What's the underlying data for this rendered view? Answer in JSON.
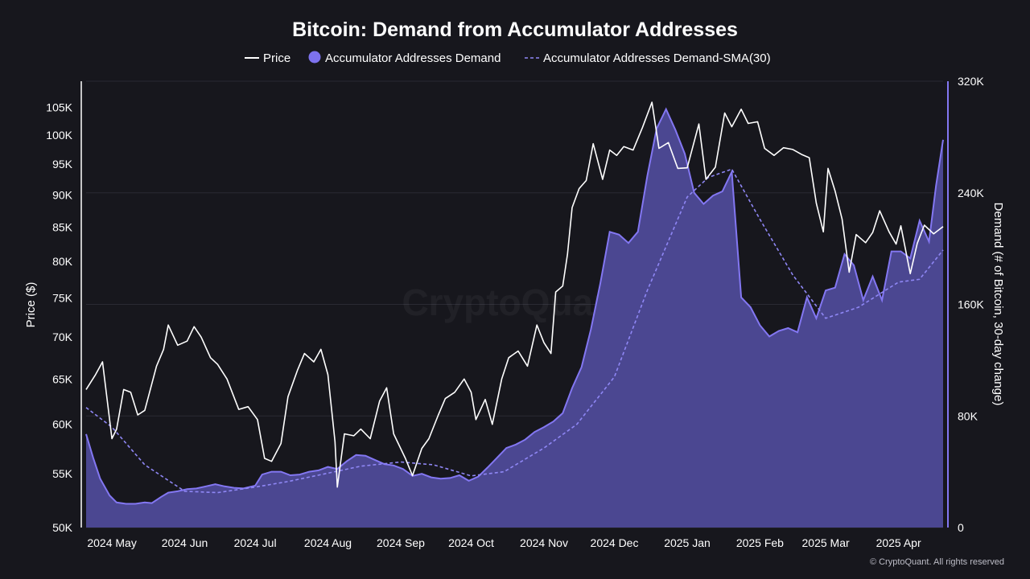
{
  "chart_data": {
    "type": "line",
    "title": "Bitcoin: Demand from Accumulator Addresses",
    "legend": {
      "placement": "top-center",
      "entries": [
        "Price",
        "Accumulator Addresses Demand",
        "Accumulator Addresses Demand-SMA(30)"
      ]
    },
    "colors": {
      "background": "#17171d",
      "price": "#ffffff",
      "demand_line": "#8377f2",
      "demand_fill": "#4b4791",
      "sma": "#8f87f5"
    },
    "x_axis": {
      "type": "date",
      "range": [
        "2024-04-20",
        "2025-04-20"
      ],
      "ticks": [
        {
          "date": "2024-05-01",
          "label": "2024 May"
        },
        {
          "date": "2024-06-01",
          "label": "2024 Jun"
        },
        {
          "date": "2024-07-01",
          "label": "2024 Jul"
        },
        {
          "date": "2024-08-01",
          "label": "2024 Aug"
        },
        {
          "date": "2024-09-01",
          "label": "2024 Sep"
        },
        {
          "date": "2024-10-01",
          "label": "2024 Oct"
        },
        {
          "date": "2024-11-01",
          "label": "2024 Nov"
        },
        {
          "date": "2024-12-01",
          "label": "2024 Dec"
        },
        {
          "date": "2025-01-01",
          "label": "2025 Jan"
        },
        {
          "date": "2025-02-01",
          "label": "2025 Feb"
        },
        {
          "date": "2025-03-01",
          "label": "2025 Mar"
        },
        {
          "date": "2025-04-01",
          "label": "2025 Apr"
        }
      ]
    },
    "y_left": {
      "label": "Price ($)",
      "scale": "log",
      "range": [
        50000,
        110000
      ],
      "ticks": [
        {
          "value": 50000,
          "label": "50K"
        },
        {
          "value": 55000,
          "label": "55K"
        },
        {
          "value": 60000,
          "label": "60K"
        },
        {
          "value": 65000,
          "label": "65K"
        },
        {
          "value": 70000,
          "label": "70K"
        },
        {
          "value": 75000,
          "label": "75K"
        },
        {
          "value": 80000,
          "label": "80K"
        },
        {
          "value": 85000,
          "label": "85K"
        },
        {
          "value": 90000,
          "label": "90K"
        },
        {
          "value": 95000,
          "label": "95K"
        },
        {
          "value": 100000,
          "label": "100K"
        },
        {
          "value": 105000,
          "label": "105K"
        }
      ]
    },
    "y_right": {
      "label": "Demand (# of Bitcoin, 30-day change)",
      "scale": "linear",
      "range": [
        0,
        320000
      ],
      "ticks": [
        {
          "value": 0,
          "label": "0"
        },
        {
          "value": 80000,
          "label": "80K"
        },
        {
          "value": 160000,
          "label": "160K"
        },
        {
          "value": 240000,
          "label": "240K"
        },
        {
          "value": 320000,
          "label": "320K"
        }
      ]
    },
    "grid": {
      "horizontal": true,
      "vertical": false
    },
    "series": [
      {
        "name": "Price",
        "axis": "left",
        "points": [
          [
            "2024-04-20",
            63800
          ],
          [
            "2024-04-24",
            65500
          ],
          [
            "2024-04-27",
            67000
          ],
          [
            "2024-05-01",
            58500
          ],
          [
            "2024-05-03",
            59500
          ],
          [
            "2024-05-06",
            63800
          ],
          [
            "2024-05-09",
            63500
          ],
          [
            "2024-05-12",
            61000
          ],
          [
            "2024-05-15",
            61500
          ],
          [
            "2024-05-20",
            66500
          ],
          [
            "2024-05-23",
            68500
          ],
          [
            "2024-05-25",
            71500
          ],
          [
            "2024-05-29",
            69000
          ],
          [
            "2024-06-02",
            69500
          ],
          [
            "2024-06-05",
            71300
          ],
          [
            "2024-06-08",
            70000
          ],
          [
            "2024-06-12",
            67500
          ],
          [
            "2024-06-15",
            66700
          ],
          [
            "2024-06-19",
            65000
          ],
          [
            "2024-06-24",
            61600
          ],
          [
            "2024-06-28",
            61900
          ],
          [
            "2024-07-02",
            60500
          ],
          [
            "2024-07-05",
            56500
          ],
          [
            "2024-07-08",
            56200
          ],
          [
            "2024-07-12",
            58000
          ],
          [
            "2024-07-15",
            63000
          ],
          [
            "2024-07-19",
            66000
          ],
          [
            "2024-07-22",
            68000
          ],
          [
            "2024-07-26",
            67000
          ],
          [
            "2024-07-29",
            68500
          ],
          [
            "2024-08-01",
            65500
          ],
          [
            "2024-08-04",
            58200
          ],
          [
            "2024-08-05",
            53700
          ],
          [
            "2024-08-08",
            59000
          ],
          [
            "2024-08-12",
            58800
          ],
          [
            "2024-08-15",
            59500
          ],
          [
            "2024-08-19",
            58500
          ],
          [
            "2024-08-23",
            62500
          ],
          [
            "2024-08-26",
            64000
          ],
          [
            "2024-08-29",
            59000
          ],
          [
            "2024-09-03",
            56500
          ],
          [
            "2024-09-06",
            54800
          ],
          [
            "2024-09-10",
            57500
          ],
          [
            "2024-09-13",
            58500
          ],
          [
            "2024-09-17",
            61000
          ],
          [
            "2024-09-20",
            62800
          ],
          [
            "2024-09-24",
            63500
          ],
          [
            "2024-09-28",
            65000
          ],
          [
            "2024-10-01",
            63500
          ],
          [
            "2024-10-03",
            60500
          ],
          [
            "2024-10-07",
            62700
          ],
          [
            "2024-10-10",
            60000
          ],
          [
            "2024-10-14",
            65000
          ],
          [
            "2024-10-17",
            67500
          ],
          [
            "2024-10-21",
            68300
          ],
          [
            "2024-10-25",
            66500
          ],
          [
            "2024-10-29",
            71500
          ],
          [
            "2024-11-01",
            69300
          ],
          [
            "2024-11-04",
            68000
          ],
          [
            "2024-11-06",
            75800
          ],
          [
            "2024-11-09",
            76600
          ],
          [
            "2024-11-11",
            81000
          ],
          [
            "2024-11-13",
            88000
          ],
          [
            "2024-11-16",
            91000
          ],
          [
            "2024-11-19",
            92300
          ],
          [
            "2024-11-22",
            98500
          ],
          [
            "2024-11-26",
            92500
          ],
          [
            "2024-11-29",
            97400
          ],
          [
            "2024-12-02",
            96500
          ],
          [
            "2024-12-05",
            98000
          ],
          [
            "2024-12-09",
            97400
          ],
          [
            "2024-12-13",
            101400
          ],
          [
            "2024-12-17",
            106000
          ],
          [
            "2024-12-20",
            97700
          ],
          [
            "2024-12-24",
            98700
          ],
          [
            "2024-12-28",
            94300
          ],
          [
            "2025-01-01",
            94400
          ],
          [
            "2025-01-06",
            102000
          ],
          [
            "2025-01-09",
            92500
          ],
          [
            "2025-01-13",
            94500
          ],
          [
            "2025-01-17",
            104000
          ],
          [
            "2025-01-20",
            101500
          ],
          [
            "2025-01-24",
            104700
          ],
          [
            "2025-01-27",
            102100
          ],
          [
            "2025-01-31",
            102400
          ],
          [
            "2025-02-03",
            97700
          ],
          [
            "2025-02-07",
            96500
          ],
          [
            "2025-02-11",
            97800
          ],
          [
            "2025-02-15",
            97500
          ],
          [
            "2025-02-19",
            96600
          ],
          [
            "2025-02-22",
            96100
          ],
          [
            "2025-02-25",
            88700
          ],
          [
            "2025-02-28",
            84300
          ],
          [
            "2025-03-02",
            94300
          ],
          [
            "2025-03-05",
            90600
          ],
          [
            "2025-03-08",
            86200
          ],
          [
            "2025-03-11",
            78500
          ],
          [
            "2025-03-14",
            83900
          ],
          [
            "2025-03-18",
            82700
          ],
          [
            "2025-03-21",
            84200
          ],
          [
            "2025-03-24",
            87500
          ],
          [
            "2025-03-28",
            84300
          ],
          [
            "2025-03-31",
            82500
          ],
          [
            "2025-04-02",
            85200
          ],
          [
            "2025-04-06",
            78300
          ],
          [
            "2025-04-09",
            82600
          ],
          [
            "2025-04-12",
            85300
          ],
          [
            "2025-04-16",
            84000
          ],
          [
            "2025-04-20",
            85100
          ]
        ]
      },
      {
        "name": "Accumulator Addresses Demand",
        "axis": "right",
        "points": [
          [
            "2024-04-20",
            67000
          ],
          [
            "2024-04-23",
            50000
          ],
          [
            "2024-04-26",
            35000
          ],
          [
            "2024-04-30",
            23000
          ],
          [
            "2024-05-03",
            18000
          ],
          [
            "2024-05-07",
            17000
          ],
          [
            "2024-05-11",
            17000
          ],
          [
            "2024-05-15",
            18000
          ],
          [
            "2024-05-18",
            17500
          ],
          [
            "2024-05-22",
            22000
          ],
          [
            "2024-05-25",
            25000
          ],
          [
            "2024-05-29",
            26000
          ],
          [
            "2024-06-02",
            27500
          ],
          [
            "2024-06-06",
            28000
          ],
          [
            "2024-06-10",
            29500
          ],
          [
            "2024-06-14",
            31000
          ],
          [
            "2024-06-18",
            29500
          ],
          [
            "2024-06-22",
            28500
          ],
          [
            "2024-06-26",
            28000
          ],
          [
            "2024-07-01",
            30000
          ],
          [
            "2024-07-04",
            38000
          ],
          [
            "2024-07-08",
            40000
          ],
          [
            "2024-07-12",
            40000
          ],
          [
            "2024-07-16",
            37500
          ],
          [
            "2024-07-20",
            38000
          ],
          [
            "2024-07-24",
            40000
          ],
          [
            "2024-07-28",
            41000
          ],
          [
            "2024-08-01",
            43500
          ],
          [
            "2024-08-05",
            42000
          ],
          [
            "2024-08-09",
            47500
          ],
          [
            "2024-08-13",
            52000
          ],
          [
            "2024-08-17",
            51500
          ],
          [
            "2024-08-21",
            48500
          ],
          [
            "2024-08-25",
            45500
          ],
          [
            "2024-08-29",
            44500
          ],
          [
            "2024-09-02",
            42000
          ],
          [
            "2024-09-06",
            37000
          ],
          [
            "2024-09-10",
            38500
          ],
          [
            "2024-09-14",
            36000
          ],
          [
            "2024-09-18",
            35000
          ],
          [
            "2024-09-22",
            35500
          ],
          [
            "2024-09-26",
            37500
          ],
          [
            "2024-09-30",
            33500
          ],
          [
            "2024-10-04",
            36500
          ],
          [
            "2024-10-08",
            43000
          ],
          [
            "2024-10-12",
            50000
          ],
          [
            "2024-10-16",
            57000
          ],
          [
            "2024-10-20",
            59500
          ],
          [
            "2024-10-24",
            63000
          ],
          [
            "2024-10-28",
            68500
          ],
          [
            "2024-11-01",
            72000
          ],
          [
            "2024-11-05",
            76000
          ],
          [
            "2024-11-09",
            82000
          ],
          [
            "2024-11-13",
            100000
          ],
          [
            "2024-11-17",
            115000
          ],
          [
            "2024-11-21",
            142000
          ],
          [
            "2024-11-25",
            175000
          ],
          [
            "2024-11-29",
            212000
          ],
          [
            "2024-12-03",
            210000
          ],
          [
            "2024-12-07",
            204000
          ],
          [
            "2024-12-11",
            212000
          ],
          [
            "2024-12-15",
            252000
          ],
          [
            "2024-12-19",
            286000
          ],
          [
            "2024-12-23",
            300000
          ],
          [
            "2024-12-27",
            285000
          ],
          [
            "2024-12-31",
            268000
          ],
          [
            "2025-01-04",
            240000
          ],
          [
            "2025-01-08",
            232000
          ],
          [
            "2025-01-12",
            238000
          ],
          [
            "2025-01-16",
            241000
          ],
          [
            "2025-01-20",
            255000
          ],
          [
            "2025-01-24",
            165000
          ],
          [
            "2025-01-28",
            158000
          ],
          [
            "2025-02-01",
            145000
          ],
          [
            "2025-02-05",
            137000
          ],
          [
            "2025-02-09",
            141000
          ],
          [
            "2025-02-13",
            143000
          ],
          [
            "2025-02-17",
            140000
          ],
          [
            "2025-02-21",
            165000
          ],
          [
            "2025-02-25",
            150000
          ],
          [
            "2025-03-01",
            170000
          ],
          [
            "2025-03-05",
            172000
          ],
          [
            "2025-03-09",
            196000
          ],
          [
            "2025-03-13",
            188000
          ],
          [
            "2025-03-17",
            163000
          ],
          [
            "2025-03-21",
            180000
          ],
          [
            "2025-03-25",
            163000
          ],
          [
            "2025-03-29",
            198000
          ],
          [
            "2025-04-02",
            198000
          ],
          [
            "2025-04-06",
            193000
          ],
          [
            "2025-04-10",
            220000
          ],
          [
            "2025-04-14",
            205000
          ],
          [
            "2025-04-17",
            245000
          ],
          [
            "2025-04-20",
            278000
          ]
        ]
      },
      {
        "name": "Accumulator Addresses Demand-SMA(30)",
        "axis": "right",
        "points": [
          [
            "2024-04-20",
            86000
          ],
          [
            "2024-05-01",
            72000
          ],
          [
            "2024-05-15",
            45000
          ],
          [
            "2024-06-01",
            26000
          ],
          [
            "2024-06-15",
            25000
          ],
          [
            "2024-07-01",
            29000
          ],
          [
            "2024-07-15",
            33000
          ],
          [
            "2024-08-01",
            39000
          ],
          [
            "2024-08-15",
            44000
          ],
          [
            "2024-09-01",
            47000
          ],
          [
            "2024-09-15",
            45000
          ],
          [
            "2024-10-01",
            37000
          ],
          [
            "2024-10-15",
            40000
          ],
          [
            "2024-11-01",
            57000
          ],
          [
            "2024-11-15",
            74000
          ],
          [
            "2024-12-01",
            108000
          ],
          [
            "2024-12-15",
            170000
          ],
          [
            "2025-01-01",
            237000
          ],
          [
            "2025-01-10",
            251000
          ],
          [
            "2025-01-20",
            257000
          ],
          [
            "2025-02-01",
            221000
          ],
          [
            "2025-02-15",
            181000
          ],
          [
            "2025-03-01",
            150000
          ],
          [
            "2025-03-15",
            158000
          ],
          [
            "2025-04-01",
            176000
          ],
          [
            "2025-04-10",
            178000
          ],
          [
            "2025-04-20",
            199000
          ]
        ]
      }
    ],
    "watermark": "CryptoQuant",
    "copyright": "© CryptoQuant. All rights reserved"
  }
}
